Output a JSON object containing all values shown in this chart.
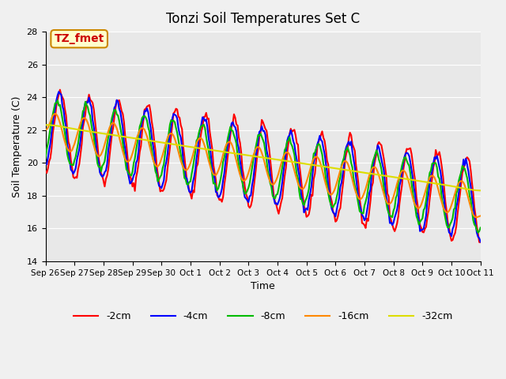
{
  "title": "Tonzi Soil Temperatures Set C",
  "xlabel": "Time",
  "ylabel": "Soil Temperature (C)",
  "ylim": [
    14,
    28
  ],
  "yticks": [
    14,
    16,
    18,
    20,
    22,
    24,
    26,
    28
  ],
  "xlabels": [
    "Sep 26",
    "Sep 27",
    "Sep 28",
    "Sep 29",
    "Sep 30",
    "Oct 1",
    "Oct 2",
    "Oct 3",
    "Oct 4",
    "Oct 5",
    "Oct 6",
    "Oct 7",
    "Oct 8",
    "Oct 9",
    "Oct 10",
    "Oct 11"
  ],
  "series_colors": [
    "#ff0000",
    "#0000ff",
    "#00bb00",
    "#ff8800",
    "#dddd00"
  ],
  "series_labels": [
    "-2cm",
    "-4cm",
    "-8cm",
    "-16cm",
    "-32cm"
  ],
  "line_width": 1.5,
  "annotation_text": "TZ_fmet",
  "annotation_color": "#cc0000",
  "annotation_bg": "#ffffcc",
  "annotation_border": "#cc8800",
  "fig_bg": "#f0f0f0",
  "plot_bg": "#e8e8e8"
}
